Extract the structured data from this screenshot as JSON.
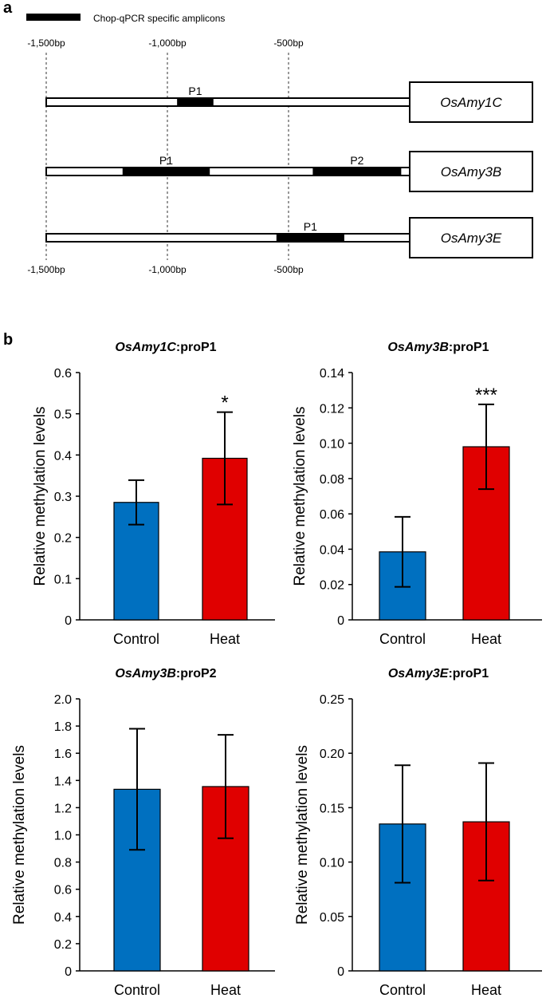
{
  "panel_a": {
    "label": "a",
    "legend_label": "Chop-qPCR specific amplicons",
    "top_ticks": [
      "-1,500bp",
      "-1,000bp",
      "-500bp"
    ],
    "bottom_ticks": [
      "-1,500bp",
      "-1,000bp",
      "-500bp"
    ],
    "tick_positions_bp": [
      -1500,
      -1000,
      -500
    ],
    "promoter_start_bp": -1500,
    "promoter_end_bp": 0,
    "genes": [
      {
        "name": "OsAmy1C",
        "amplicons": [
          {
            "label": "P1",
            "start_bp": -960,
            "end_bp": -810
          }
        ]
      },
      {
        "name": "OsAmy3B",
        "amplicons": [
          {
            "label": "P1",
            "start_bp": -1185,
            "end_bp": -825
          },
          {
            "label": "P2",
            "start_bp": -400,
            "end_bp": -35
          }
        ]
      },
      {
        "name": "OsAmy3E",
        "amplicons": [
          {
            "label": "P1",
            "start_bp": -550,
            "end_bp": -270
          }
        ]
      }
    ]
  },
  "panel_b": {
    "label": "b"
  },
  "chart_data": [
    {
      "type": "bar",
      "title_gene": "OsAmy1C",
      "title_suffix": ":proP1",
      "title": "OsAmy1C:proP1",
      "ylabel": "Relative methylation levels",
      "categories": [
        "Control",
        "Heat"
      ],
      "values": [
        0.285,
        0.392
      ],
      "errors": [
        0.054,
        0.112
      ],
      "colors": [
        "#0070C0",
        "#E00000"
      ],
      "ylim": [
        0,
        0.6
      ],
      "yticks": [
        "0",
        "0.1",
        "0.2",
        "0.3",
        "0.4",
        "0.5",
        "0.6"
      ],
      "significance": [
        "",
        "*"
      ]
    },
    {
      "type": "bar",
      "title_gene": "OsAmy3B",
      "title_suffix": ":proP1",
      "title": "OsAmy3B:proP1",
      "ylabel": "Relative methylation levels",
      "categories": [
        "Control",
        "Heat"
      ],
      "values": [
        0.0385,
        0.098
      ],
      "errors": [
        0.0198,
        0.024
      ],
      "colors": [
        "#0070C0",
        "#E00000"
      ],
      "ylim": [
        0,
        0.14
      ],
      "yticks": [
        "0",
        "0.02",
        "0.04",
        "0.06",
        "0.08",
        "0.10",
        "0.12",
        "0.14"
      ],
      "significance": [
        "",
        "***"
      ]
    },
    {
      "type": "bar",
      "title_gene": "OsAmy3B",
      "title_suffix": ":proP2",
      "title": "OsAmy3B:proP2",
      "ylabel": "Relative methylation levels",
      "categories": [
        "Control",
        "Heat"
      ],
      "values": [
        1.335,
        1.355
      ],
      "errors": [
        0.445,
        0.38
      ],
      "colors": [
        "#0070C0",
        "#E00000"
      ],
      "ylim": [
        0,
        2.0
      ],
      "yticks": [
        "0",
        "0.2",
        "0.4",
        "0.6",
        "0.8",
        "1.0",
        "1.2",
        "1.4",
        "1.6",
        "1.8",
        "2.0"
      ],
      "significance": [
        "",
        ""
      ]
    },
    {
      "type": "bar",
      "title_gene": "OsAmy3E",
      "title_suffix": ":proP1",
      "title": "OsAmy3E:proP1",
      "ylabel": "Relative methylation levels",
      "categories": [
        "Control",
        "Heat"
      ],
      "values": [
        0.135,
        0.137
      ],
      "errors": [
        0.054,
        0.054
      ],
      "colors": [
        "#0070C0",
        "#E00000"
      ],
      "ylim": [
        0,
        0.25
      ],
      "yticks": [
        "0",
        "0.05",
        "0.10",
        "0.15",
        "0.20",
        "0.25"
      ],
      "significance": [
        "",
        ""
      ]
    }
  ]
}
